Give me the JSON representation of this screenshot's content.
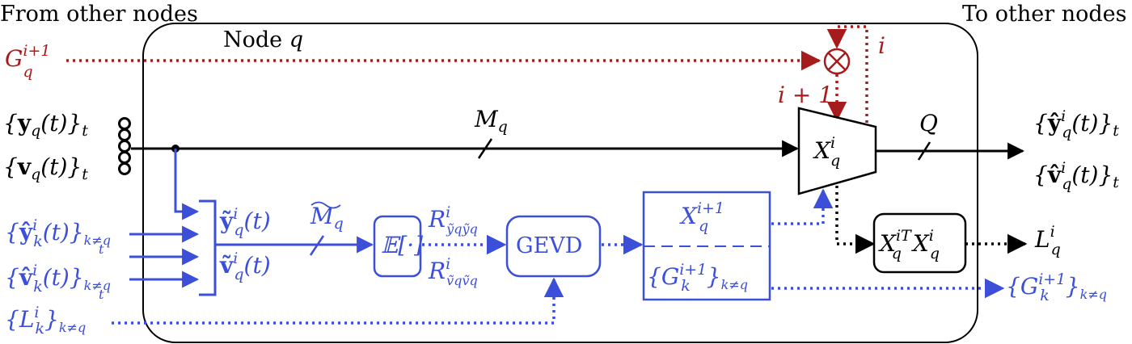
{
  "header": {
    "from_nodes": "From other nodes",
    "to_nodes": "To other nodes"
  },
  "node": {
    "label_text": "Node",
    "label_var": "q"
  },
  "inputs": {
    "g_q": {
      "base": "G",
      "sup": "i+1",
      "sub": "q"
    },
    "y_q": "{y_q(t)}_t",
    "v_q": "{v_q(t)}_t",
    "y_k": "{ŷ_k^i(t)}_{k≠q, t}",
    "v_k": "{v̂_k^i(t)}_{k≠q, t}",
    "l_k": "{L_k^i}_{k≠q}"
  },
  "signals": {
    "m_q": "M_q",
    "m_q_tilde": "M̃_q",
    "q_dim": "Q",
    "y_tilde": "ỹ_q^i(t)",
    "v_tilde": "ṽ_q^i(t)",
    "r_y": "R^i_{ỹ_q ỹ_q}",
    "r_v": "R^i_{ṽ_q ṽ_q}",
    "iter_i": "i",
    "iter_i1": "i + 1"
  },
  "blocks": {
    "expectation": "𝔼[·]",
    "gevd": "GEVD",
    "x_next": "X_q^{i+1}",
    "g_k_next": "{G_k^{i+1}}_{k≠q}",
    "x_current": "X_q^i",
    "xtx": "X_q^{iT} X_q^i",
    "multiply": "⊗"
  },
  "outputs": {
    "y_hat": "{ŷ_q^i(t)}_t",
    "v_hat": "{v̂_q^i(t)}_t",
    "l_q": "L_q^i",
    "g_k_out": "{G_k^{i+1}}_{k≠q}"
  },
  "colors": {
    "black": "#000000",
    "blue": "#3b4fd8",
    "red": "#a61b1b"
  }
}
